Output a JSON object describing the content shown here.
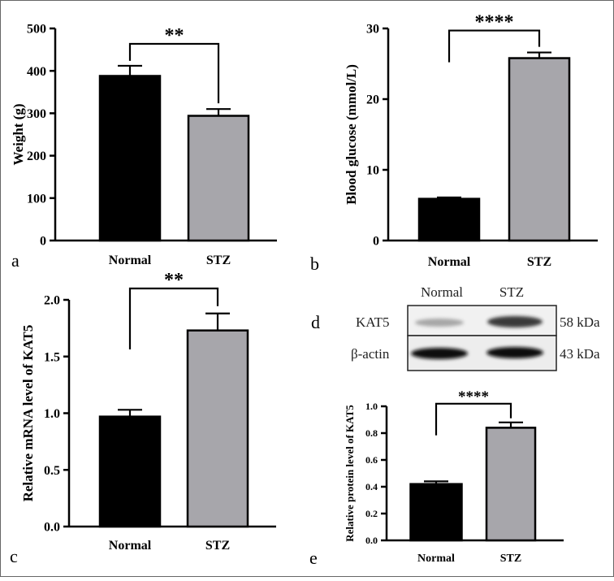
{
  "colors": {
    "normal": "#000000",
    "stz": "#a7a6ab",
    "axis": "#000000",
    "frame": "#555555"
  },
  "chart_data": [
    {
      "panel": "a",
      "type": "bar",
      "categories": [
        "Normal",
        "STZ"
      ],
      "values": [
        388,
        294
      ],
      "errors": [
        24,
        16
      ],
      "ylabel": "Weight (g)",
      "xlabel": "",
      "ylim": [
        0,
        500
      ],
      "yticks": [
        "0",
        "100",
        "200",
        "300",
        "400",
        "500"
      ],
      "significance": "**"
    },
    {
      "panel": "b",
      "type": "bar",
      "categories": [
        "Normal",
        "STZ"
      ],
      "values": [
        5.9,
        25.8
      ],
      "errors": [
        0.2,
        0.8
      ],
      "ylabel": "Blood glucose (mmol/L)",
      "xlabel": "",
      "ylim": [
        0,
        30
      ],
      "yticks": [
        "0",
        "10",
        "20",
        "30"
      ],
      "significance": "****"
    },
    {
      "panel": "c",
      "type": "bar",
      "categories": [
        "Normal",
        "STZ"
      ],
      "values": [
        0.97,
        1.73
      ],
      "errors": [
        0.06,
        0.15
      ],
      "ylabel": "Relative mRNA level of KAT5",
      "xlabel": "",
      "ylim": [
        0,
        2.0
      ],
      "yticks": [
        "0.0",
        "0.5",
        "1.0",
        "1.5",
        "2.0"
      ],
      "significance": "**"
    },
    {
      "panel": "e",
      "type": "bar",
      "categories": [
        "Normal",
        "STZ"
      ],
      "values": [
        0.42,
        0.84
      ],
      "errors": [
        0.02,
        0.04
      ],
      "ylabel": "Relative protein level of KAT5",
      "xlabel": "",
      "ylim": [
        0,
        1.0
      ],
      "yticks": [
        "0.0",
        "0.2",
        "0.4",
        "0.6",
        "0.8",
        "1.0"
      ],
      "significance": "****"
    }
  ],
  "blot": {
    "panel": "d",
    "lanes": [
      "Normal",
      "STZ"
    ],
    "rows": [
      {
        "protein": "KAT5",
        "size": "58 kDa"
      },
      {
        "protein": "β-actin",
        "size": "43 kDa"
      }
    ]
  }
}
